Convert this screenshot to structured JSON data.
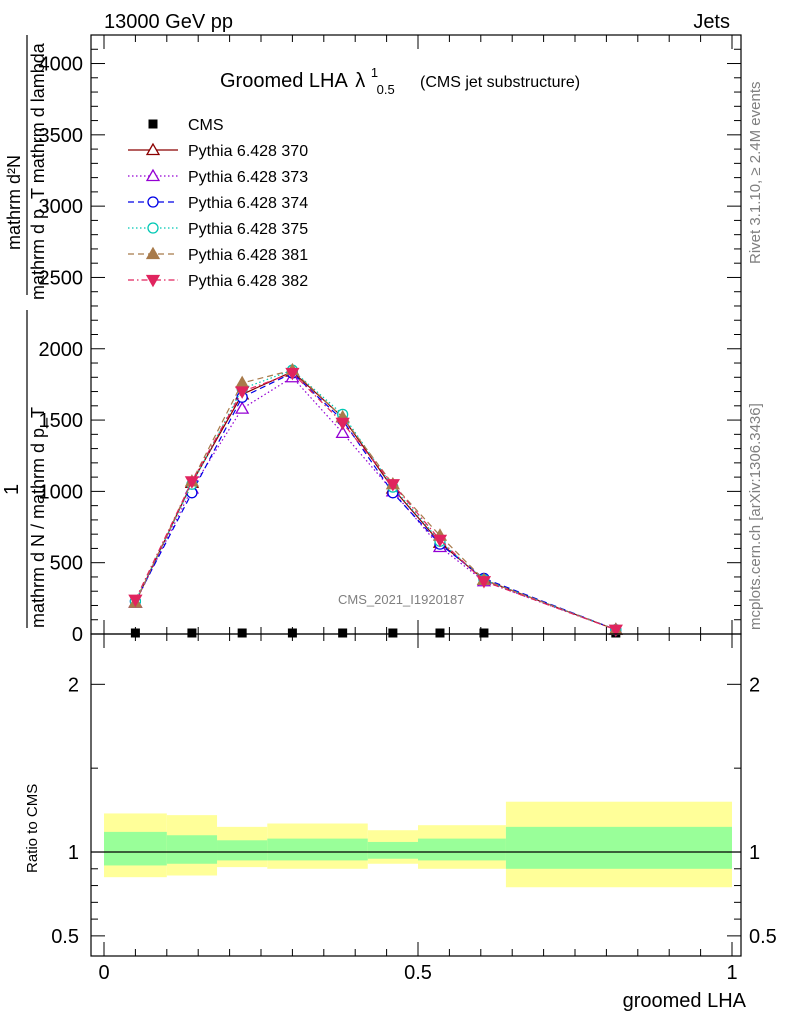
{
  "header": {
    "left": "13000 GeV pp",
    "right": "Jets"
  },
  "side": {
    "rivet": "Rivet 3.1.10, ≥ 2.4M events",
    "mcplots": "mcplots.cern.ch [arXiv:1306.3436]"
  },
  "colors": {
    "cms": "#000000",
    "p370": "#8b0000",
    "p373": "#9400d3",
    "p374": "#0000e6",
    "p375": "#00c8b4",
    "p381": "#a87a4a",
    "p382": "#e0245e",
    "band_stat": "#99ff99",
    "band_total": "#ffff99"
  },
  "chart_data": [
    {
      "type": "line",
      "title": "Groomed LHA",
      "title_lambda": "λ",
      "title_sup": "1",
      "title_sub": "0.5",
      "subtitle": "(CMS jet substructure)",
      "ylabel_top": "mathrm d²N",
      "ylabel_top2": "mathrm d p_T mathrm d lambda",
      "ylabel_bottom": "mathrm d N / mathrm d p_T",
      "ylabel_one": "1",
      "watermark": "CMS_2021_I1920187",
      "xlim": [
        0,
        1
      ],
      "ylim": [
        0,
        4200
      ],
      "yticks": [
        0,
        500,
        1000,
        1500,
        2000,
        2500,
        3000,
        3500,
        4000
      ],
      "ytick_labels": [
        "0",
        "500",
        "1000",
        "1500",
        "2000",
        "2500",
        "3000",
        "3500",
        "4000"
      ],
      "x": [
        0.05,
        0.14,
        0.22,
        0.3,
        0.38,
        0.46,
        0.535,
        0.605,
        0.815
      ],
      "series": [
        {
          "name": "CMS",
          "marker": "square",
          "color": "#000000",
          "dash": "",
          "values": [
            0,
            0,
            0,
            0,
            0,
            0,
            0,
            0,
            0
          ],
          "noline": true
        },
        {
          "name": "Pythia 6.428 370",
          "marker": "triangle-open",
          "color": "#8b0000",
          "dash": "",
          "values": [
            220,
            1060,
            1680,
            1840,
            1520,
            1020,
            640,
            380,
            30
          ]
        },
        {
          "name": "Pythia 6.428 373",
          "marker": "triangle-open",
          "color": "#9400d3",
          "dash": "1.5,2.5",
          "values": [
            220,
            1020,
            1580,
            1800,
            1410,
            1000,
            610,
            370,
            30
          ]
        },
        {
          "name": "Pythia 6.428 374",
          "marker": "circle-open",
          "color": "#0000e6",
          "dash": "6,4",
          "values": [
            230,
            990,
            1660,
            1830,
            1500,
            990,
            630,
            390,
            30
          ]
        },
        {
          "name": "Pythia 6.428 375",
          "marker": "circle-open",
          "color": "#00c8b4",
          "dash": "1.5,2.5",
          "values": [
            230,
            1050,
            1720,
            1850,
            1540,
            1030,
            650,
            380,
            30
          ]
        },
        {
          "name": "Pythia 6.428 381",
          "marker": "triangle",
          "color": "#a87a4a",
          "dash": "6,4",
          "values": [
            220,
            1070,
            1760,
            1850,
            1520,
            1050,
            690,
            380,
            30
          ]
        },
        {
          "name": "Pythia 6.428 382",
          "marker": "triangle-down",
          "color": "#e0245e",
          "dash": "6,3,1.5,3",
          "values": [
            240,
            1070,
            1700,
            1830,
            1480,
            1050,
            660,
            370,
            30
          ]
        }
      ]
    },
    {
      "type": "area",
      "ylabel": "Ratio to CMS",
      "xlabel": "groomed LHA",
      "xlim": [
        0,
        1
      ],
      "ylim": [
        0.38,
        2.3
      ],
      "xticks": [
        0,
        0.5,
        1
      ],
      "xtick_labels": [
        "0",
        "0.5",
        "1"
      ],
      "yticks": [
        0.5,
        1,
        2
      ],
      "ytick_labels": [
        "0.5",
        "1",
        "2"
      ],
      "reference": 1,
      "bins": [
        {
          "x0": 0.0,
          "x1": 0.1,
          "stat": [
            0.92,
            1.12
          ],
          "total": [
            0.85,
            1.23
          ]
        },
        {
          "x0": 0.1,
          "x1": 0.18,
          "stat": [
            0.93,
            1.1
          ],
          "total": [
            0.86,
            1.22
          ]
        },
        {
          "x0": 0.18,
          "x1": 0.26,
          "stat": [
            0.95,
            1.07
          ],
          "total": [
            0.91,
            1.15
          ]
        },
        {
          "x0": 0.26,
          "x1": 0.42,
          "stat": [
            0.95,
            1.08
          ],
          "total": [
            0.9,
            1.17
          ]
        },
        {
          "x0": 0.42,
          "x1": 0.5,
          "stat": [
            0.96,
            1.06
          ],
          "total": [
            0.93,
            1.13
          ]
        },
        {
          "x0": 0.5,
          "x1": 0.64,
          "stat": [
            0.95,
            1.08
          ],
          "total": [
            0.9,
            1.16
          ]
        },
        {
          "x0": 0.64,
          "x1": 1.0,
          "stat": [
            0.9,
            1.15
          ],
          "total": [
            0.79,
            1.3
          ]
        }
      ]
    }
  ]
}
